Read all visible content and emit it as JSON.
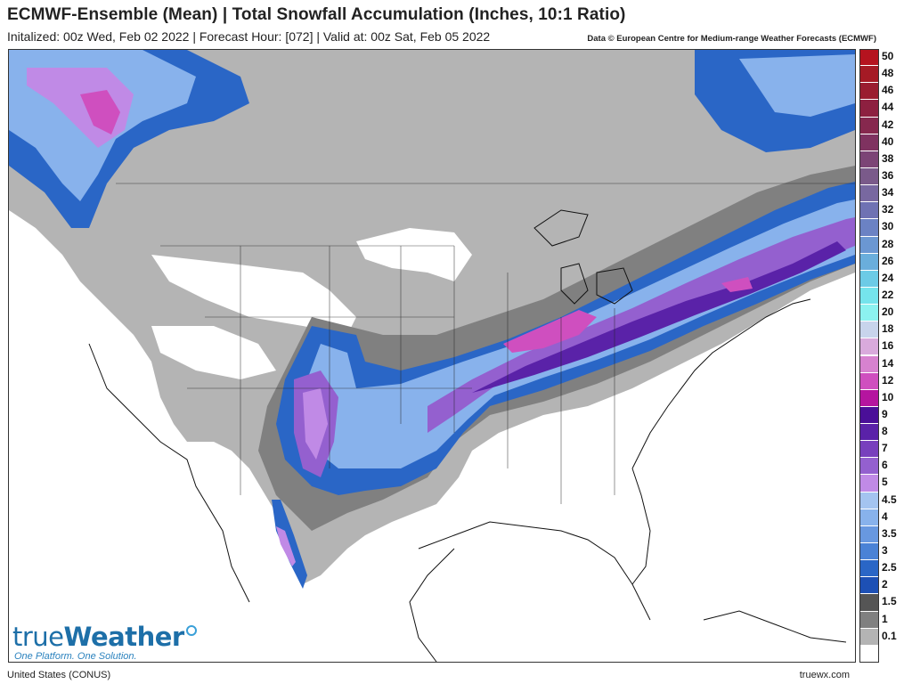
{
  "header": {
    "title": "ECMWF-Ensemble (Mean) | Total Snowfall Accumulation (Inches, 10:1 Ratio)",
    "subtitle": "Initalized: 00z Wed, Feb 02 2022 | Forecast Hour: [072] | Valid at: 00z Sat, Feb 05 2022",
    "credit": "Data © European Centre for Medium-range Weather Forecasts (ECMWF)"
  },
  "legend": {
    "items": [
      {
        "label": "50",
        "color": "#b5131f"
      },
      {
        "label": "48",
        "color": "#a51a25"
      },
      {
        "label": "46",
        "color": "#9a1d30"
      },
      {
        "label": "44",
        "color": "#8d2040"
      },
      {
        "label": "42",
        "color": "#86284e"
      },
      {
        "label": "40",
        "color": "#7f3260"
      },
      {
        "label": "38",
        "color": "#7c4476"
      },
      {
        "label": "36",
        "color": "#7a5a8a"
      },
      {
        "label": "34",
        "color": "#7868a0"
      },
      {
        "label": "32",
        "color": "#6f72b3"
      },
      {
        "label": "30",
        "color": "#6b82c4"
      },
      {
        "label": "28",
        "color": "#6b97d2"
      },
      {
        "label": "26",
        "color": "#6aaedc"
      },
      {
        "label": "24",
        "color": "#6ccbe6"
      },
      {
        "label": "22",
        "color": "#75e4ec"
      },
      {
        "label": "20",
        "color": "#8cf2f0"
      },
      {
        "label": "18",
        "color": "#c8d4ec"
      },
      {
        "label": "16",
        "color": "#d9aadc"
      },
      {
        "label": "14",
        "color": "#d782cf"
      },
      {
        "label": "12",
        "color": "#cf4fbf"
      },
      {
        "label": "10",
        "color": "#b5159f"
      },
      {
        "label": "9",
        "color": "#4a0f98"
      },
      {
        "label": "8",
        "color": "#5a22a8"
      },
      {
        "label": "7",
        "color": "#7840bd"
      },
      {
        "label": "6",
        "color": "#9460cf"
      },
      {
        "label": "5",
        "color": "#c08ae6"
      },
      {
        "label": "4.5",
        "color": "#a4c4f0"
      },
      {
        "label": "4",
        "color": "#88b2ec"
      },
      {
        "label": "3.5",
        "color": "#6898e0"
      },
      {
        "label": "3",
        "color": "#4a82d6"
      },
      {
        "label": "2.5",
        "color": "#2a66c6"
      },
      {
        "label": "2",
        "color": "#1d50b5"
      },
      {
        "label": "1.5",
        "color": "#555555"
      },
      {
        "label": "1",
        "color": "#808080"
      },
      {
        "label": "0.1",
        "color": "#b4b4b4"
      },
      {
        "label": "",
        "color": "#ffffff"
      }
    ]
  },
  "logo": {
    "name_part1": "true",
    "name_part2": "Weather",
    "tagline": "One Platform. One Solution."
  },
  "footer": {
    "region": "United States (CONUS)",
    "site": "truewx.com"
  }
}
